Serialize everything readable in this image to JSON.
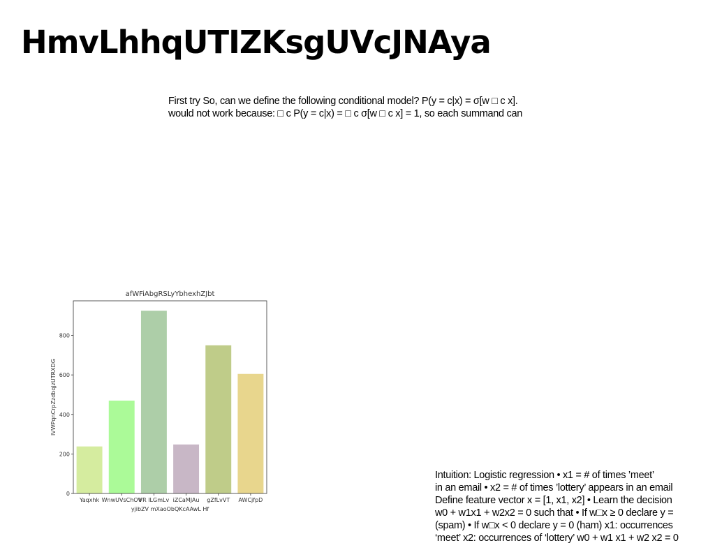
{
  "slide": {
    "title": "HmvLhhqUTIZKsgUVcJNAya",
    "top_lines": [
      "First try So, can we define the following conditional model? P(y = c|x) = σ[w □ c x].",
      "would not work because: □ c P(y = c|x) = □ c σ[w □ c x] = 1, so each summand can"
    ],
    "bottom_lines": [
      "Intuition: Logistic regression • x1 = # of times ’meet’",
      "in an email • x2 = # of times ’lottery’ appears in an email",
      "Define feature vector x = [1, x1, x2] • Learn the decision",
      "w0 + w1x1 + w2x2 = 0 such that • If w□x ≥ 0 declare y =",
      "(spam) • If w□x < 0 declare y = 0 (ham) x1: occurrences",
      "‘meet’ x2: occurrences of ‘lottery’ w0 + w1 x1 + w2 x2 = 0"
    ]
  },
  "chart_data": {
    "type": "bar",
    "title": "afWFiAbgRSLyYbhexhZJbt",
    "xlabel": "yjibZV mXaoObQKcAAwL Hf",
    "ylabel": "lVWPqnCrpZzdbqjzUTRXDG",
    "categories": [
      "Yaqxhk",
      "WnwUVsChOV",
      "VR ILGmLv",
      "iZCaMJAu",
      "gZfLvVT",
      "AWCjfpD"
    ],
    "values": [
      238,
      470,
      925,
      248,
      750,
      605
    ],
    "colors": [
      "#d5ec9f",
      "#abfa98",
      "#adcea8",
      "#c8b7c6",
      "#bfcc89",
      "#e8d68d"
    ],
    "ylim": [
      0,
      975
    ],
    "yticks": [
      0,
      200,
      400,
      600,
      800
    ],
    "grid": false
  }
}
